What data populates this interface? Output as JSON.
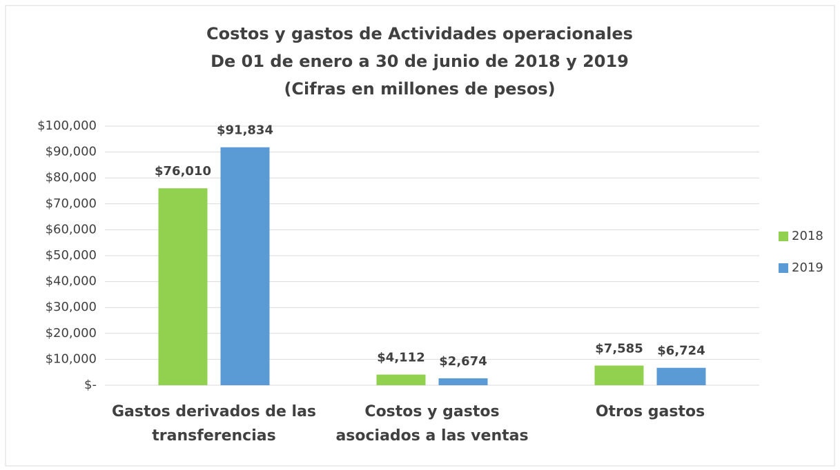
{
  "chart_data": {
    "type": "bar",
    "title": [
      "Costos y gastos de Actividades operacionales",
      "De 01 de enero a 30 de junio de 2018 y 2019",
      "(Cifras en millones de pesos)"
    ],
    "categories": [
      "Gastos derivados de las transferencias",
      "Costos y gastos asociados a las ventas",
      "Otros gastos"
    ],
    "series": [
      {
        "name": "2018",
        "color": "#92d050",
        "values": [
          76010,
          4112,
          7585
        ],
        "value_labels": [
          "$76,010",
          "$4,112",
          "$7,585"
        ]
      },
      {
        "name": "2019",
        "color": "#5b9bd5",
        "values": [
          91834,
          2674,
          6724
        ],
        "value_labels": [
          "$91,834",
          "$2,674",
          "$6,724"
        ]
      }
    ],
    "ylim": [
      0,
      100000
    ],
    "yticks": [
      {
        "value": 0,
        "label": "$-"
      },
      {
        "value": 10000,
        "label": "$10,000"
      },
      {
        "value": 20000,
        "label": "$20,000"
      },
      {
        "value": 30000,
        "label": "$30,000"
      },
      {
        "value": 40000,
        "label": "$40,000"
      },
      {
        "value": 50000,
        "label": "$50,000"
      },
      {
        "value": 60000,
        "label": "$60,000"
      },
      {
        "value": 70000,
        "label": "$70,000"
      },
      {
        "value": 80000,
        "label": "$80,000"
      },
      {
        "value": 90000,
        "label": "$90,000"
      },
      {
        "value": 100000,
        "label": "$100,000"
      }
    ],
    "grid": true,
    "legend": "right"
  }
}
